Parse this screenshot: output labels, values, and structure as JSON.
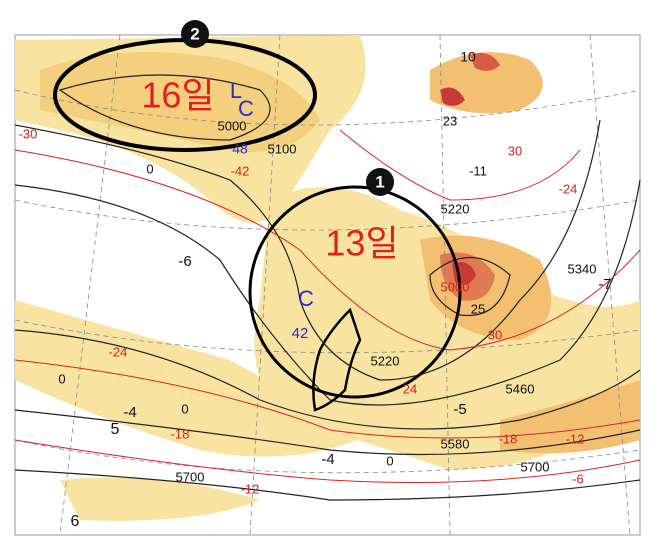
{
  "markers": [
    "1",
    "2"
  ],
  "dates": [
    "16일",
    "13일"
  ],
  "labels": [
    {
      "text": "L",
      "color": "blue"
    },
    {
      "text": "C",
      "color": "blue"
    },
    {
      "text": "48",
      "color": "blue"
    },
    {
      "text": "C",
      "color": "blue"
    },
    {
      "text": "42",
      "color": "blue"
    },
    {
      "text": "5000",
      "color": "black"
    },
    {
      "text": "5000",
      "color": "red"
    },
    {
      "text": "5100",
      "color": "black"
    },
    {
      "text": "5220",
      "color": "black"
    },
    {
      "text": "5220",
      "color": "black"
    },
    {
      "text": "5340",
      "color": "black"
    },
    {
      "text": "5460",
      "color": "black"
    },
    {
      "text": "5580",
      "color": "black"
    },
    {
      "text": "5700",
      "color": "black"
    },
    {
      "text": "5700",
      "color": "black"
    },
    {
      "text": "-30",
      "color": "red"
    },
    {
      "text": "-42",
      "color": "red"
    },
    {
      "text": "-24",
      "color": "red"
    },
    {
      "text": "30",
      "color": "red"
    },
    {
      "text": "30",
      "color": "red"
    },
    {
      "text": "-18",
      "color": "red"
    },
    {
      "text": "-18",
      "color": "red"
    },
    {
      "text": "-12",
      "color": "red"
    },
    {
      "text": "-12",
      "color": "red"
    },
    {
      "text": "-6",
      "color": "red"
    },
    {
      "text": "-24",
      "color": "red"
    },
    {
      "text": "24",
      "color": "red"
    },
    {
      "text": "-6",
      "color": "black"
    },
    {
      "text": "-11",
      "color": "black"
    },
    {
      "text": "-7",
      "color": "black"
    },
    {
      "text": "-5",
      "color": "black"
    },
    {
      "text": "-4",
      "color": "black"
    },
    {
      "text": "-4",
      "color": "black"
    },
    {
      "text": "0",
      "color": "black"
    },
    {
      "text": "0",
      "color": "black"
    },
    {
      "text": "0",
      "color": "black"
    },
    {
      "text": "0",
      "color": "black"
    },
    {
      "text": "6",
      "color": "black"
    },
    {
      "text": "5",
      "color": "black"
    },
    {
      "text": "23",
      "color": "black"
    },
    {
      "text": "25",
      "color": "black"
    },
    {
      "text": "10",
      "color": "black"
    }
  ]
}
